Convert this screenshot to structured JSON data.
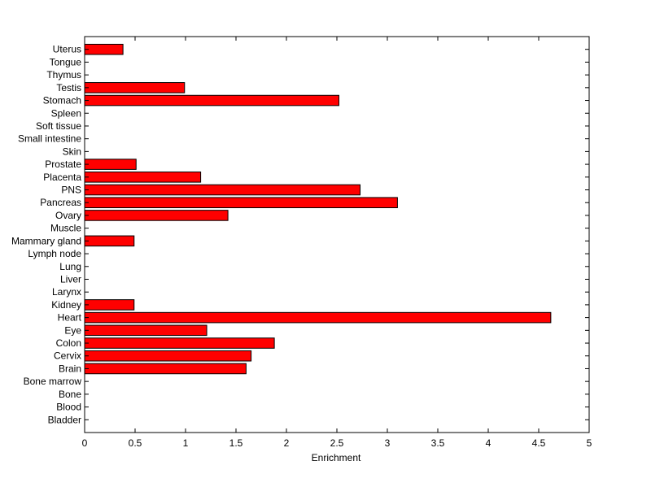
{
  "chart_data": {
    "type": "bar",
    "orientation": "horizontal",
    "title": "",
    "xlabel": "Enrichment",
    "ylabel": "",
    "xlim": [
      0,
      5
    ],
    "xticks": [
      "0",
      "0.5",
      "1",
      "1.5",
      "2",
      "2.5",
      "3",
      "3.5",
      "4",
      "4.5",
      "5"
    ],
    "grid": false,
    "legend": "none",
    "bar_color": "#ff0000",
    "categories": [
      "Bladder",
      "Blood",
      "Bone",
      "Bone marrow",
      "Brain",
      "Cervix",
      "Colon",
      "Eye",
      "Heart",
      "Kidney",
      "Larynx",
      "Liver",
      "Lung",
      "Lymph node",
      "Mammary gland",
      "Muscle",
      "Ovary",
      "Pancreas",
      "PNS",
      "Placenta",
      "Prostate",
      "Skin",
      "Small intestine",
      "Soft tissue",
      "Spleen",
      "Stomach",
      "Testis",
      "Thymus",
      "Tongue",
      "Uterus"
    ],
    "values": [
      0,
      0,
      0,
      0,
      1.6,
      1.65,
      1.88,
      1.21,
      4.62,
      0.49,
      0,
      0,
      0,
      0,
      0.49,
      0,
      1.42,
      3.1,
      2.73,
      1.15,
      0.51,
      0,
      0,
      0,
      0,
      2.52,
      0.99,
      0,
      0,
      0.38
    ]
  }
}
